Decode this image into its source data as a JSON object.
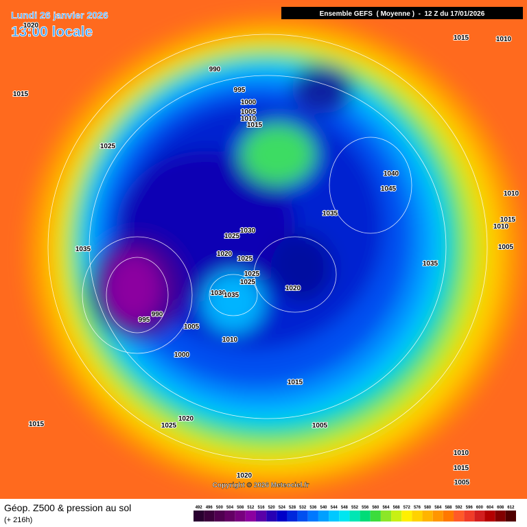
{
  "header": {
    "date": "Lundi 26 janvier 2026",
    "time": "13:00 locale",
    "model": "Ensemble GEFS  ( Moyenne )  -  12 Z du 17/01/2026"
  },
  "isobar_labels": [
    "1015",
    "1020",
    "1025",
    "1035",
    "990",
    "995",
    "1000",
    "1005",
    "1010",
    "1015",
    "1015",
    "1010",
    "1040",
    "1045",
    "1035",
    "1010",
    "1015",
    "1010",
    "1005",
    "1035",
    "1030",
    "1025",
    "1020",
    "1025",
    "1025",
    "1025",
    "1030",
    "1035",
    "1020",
    "990",
    "995",
    "1005",
    "1010",
    "1000",
    "1015",
    "1015",
    "1020",
    "1025",
    "1005",
    "1010",
    "1015",
    "1005",
    "1020"
  ],
  "copyright": "Copyright © 2026 Meteociel.fr",
  "footer": {
    "title": "Géop. Z500 & pression au sol",
    "subtitle": "(+ 216h)"
  },
  "colorbar": {
    "values": [
      492,
      496,
      500,
      504,
      508,
      512,
      516,
      520,
      524,
      528,
      532,
      536,
      540,
      544,
      548,
      552,
      556,
      560,
      564,
      568,
      572,
      576,
      580,
      584,
      588,
      592,
      596,
      600,
      604,
      608,
      612
    ],
    "colors": [
      "#2a0030",
      "#3c003c",
      "#500050",
      "#640064",
      "#78007e",
      "#8c00a0",
      "#5a00a8",
      "#2800b4",
      "#0000c8",
      "#0028dc",
      "#0050f0",
      "#0078ff",
      "#00a0ff",
      "#00c8ff",
      "#00e6f0",
      "#00e6b4",
      "#00dc78",
      "#3cdc3c",
      "#8ce628",
      "#c8f014",
      "#fff000",
      "#ffd200",
      "#ffb400",
      "#ff9600",
      "#ff7800",
      "#ff5a28",
      "#f03c28",
      "#d21e1e",
      "#b40000",
      "#820000",
      "#500000"
    ]
  }
}
